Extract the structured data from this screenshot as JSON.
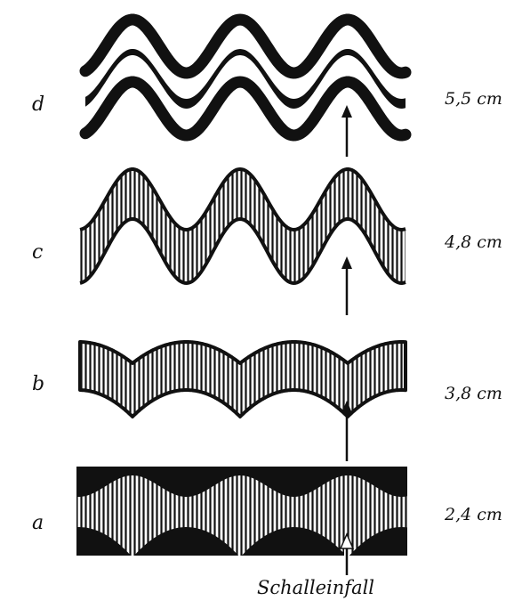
{
  "rows": [
    {
      "letter": "d",
      "measure": "5,5 cm"
    },
    {
      "letter": "c",
      "measure": "4,8 cm"
    },
    {
      "letter": "b",
      "measure": "3,8 cm"
    },
    {
      "letter": "a",
      "measure": "2,4 cm"
    }
  ],
  "caption": "Schalleinfall",
  "colors": {
    "ink": "#111111",
    "paper": "#ffffff"
  }
}
